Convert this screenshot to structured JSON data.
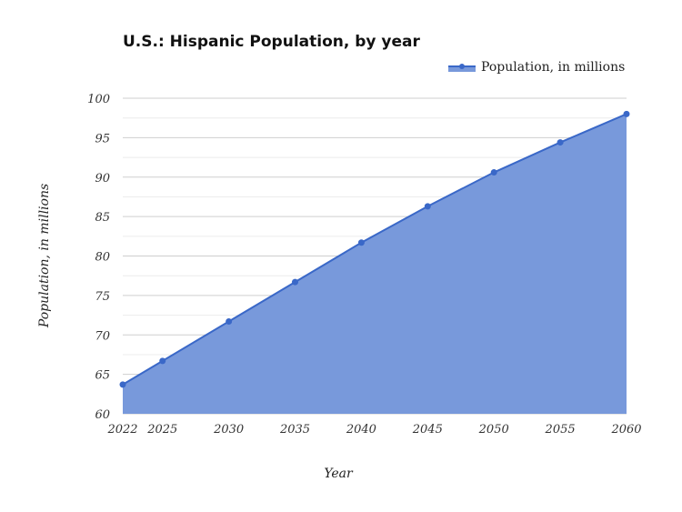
{
  "chart_data": {
    "type": "area",
    "title": "U.S.: Hispanic Population, by year",
    "xlabel": "Year",
    "ylabel": "Population, in millions",
    "categories": [
      "2022",
      "2025",
      "2030",
      "2035",
      "2040",
      "2045",
      "2050",
      "2055",
      "2060"
    ],
    "series": [
      {
        "name": "Population, in millions",
        "values": [
          63.7,
          66.7,
          71.7,
          76.7,
          81.7,
          86.3,
          90.6,
          94.4,
          98.0
        ]
      }
    ],
    "ylim": [
      60,
      100
    ],
    "yticks": [
      "60",
      "65",
      "70",
      "75",
      "80",
      "85",
      "90",
      "95",
      "100"
    ],
    "grid": true,
    "legend": "top-right",
    "colors": {
      "fill": "#7899db",
      "line": "#3a68c8"
    }
  }
}
